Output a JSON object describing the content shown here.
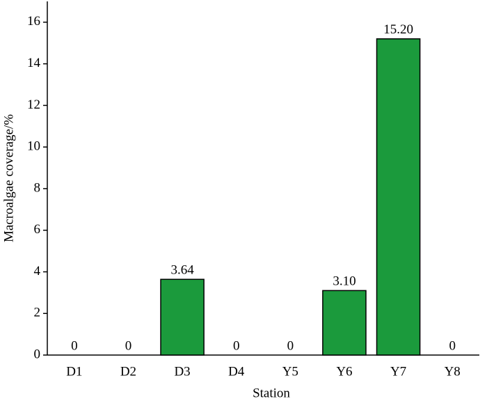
{
  "chart_data": {
    "type": "bar",
    "x_label": "Station",
    "y_label": "Macroalgae coverage/%",
    "categories": [
      "D1",
      "D2",
      "D3",
      "D4",
      "Y5",
      "Y6",
      "Y7",
      "Y8"
    ],
    "values": [
      0,
      0,
      3.64,
      0,
      0,
      3.1,
      15.2,
      0
    ],
    "value_labels": [
      "0",
      "0",
      "3.64",
      "0",
      "0",
      "3.10",
      "15.20",
      "0"
    ],
    "color": "#1b9a3c",
    "ylim": [
      0,
      17
    ],
    "yticks": [
      0,
      2,
      4,
      6,
      8,
      10,
      12,
      14,
      16
    ]
  }
}
